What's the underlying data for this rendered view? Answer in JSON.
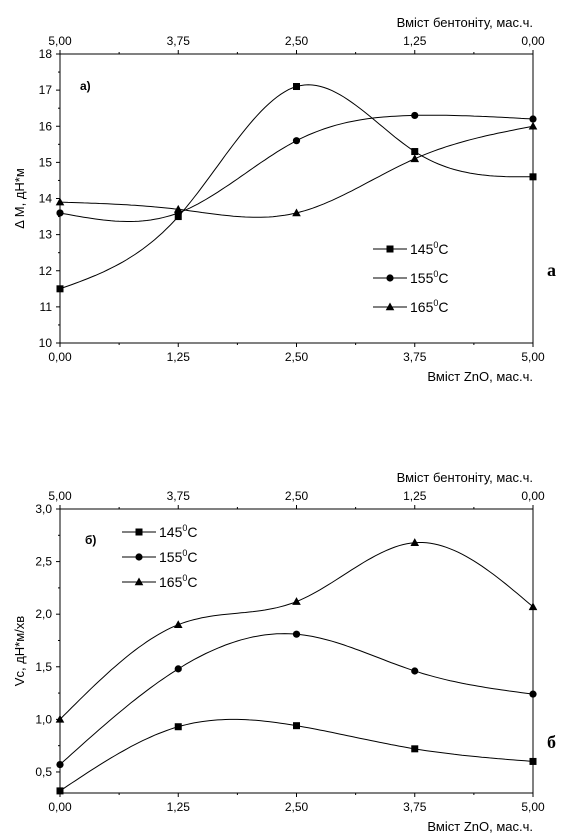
{
  "chart_data": [
    {
      "type": "scatter",
      "panel_label": "а)",
      "side_label": "а",
      "xlabel_bottom": "Вміст ZnO, мас.ч.",
      "xlabel_top": "Вміст бентоніту, мас.ч.",
      "ylabel": "Δ M, дН*м",
      "x_ticks": [
        "0,00",
        "1,25",
        "2,50",
        "3,75",
        "5,00"
      ],
      "x_top_ticks": [
        "5,00",
        "3,75",
        "2,50",
        "1,25",
        "0,00"
      ],
      "y_ticks": [
        "10",
        "11",
        "12",
        "13",
        "14",
        "15",
        "16",
        "17",
        "18"
      ],
      "xlim": [
        0,
        5
      ],
      "ylim": [
        10,
        18
      ],
      "legend_position": "bottom-right",
      "series": [
        {
          "name": "145⁰C",
          "marker": "square",
          "x": [
            0,
            1.25,
            2.5,
            3.75,
            5
          ],
          "values": [
            11.5,
            13.5,
            17.1,
            15.3,
            14.6
          ]
        },
        {
          "name": "155⁰C",
          "marker": "circle",
          "x": [
            0,
            1.25,
            2.5,
            3.75,
            5
          ],
          "values": [
            13.6,
            13.6,
            15.6,
            16.3,
            16.2
          ]
        },
        {
          "name": "165⁰C",
          "marker": "triangle",
          "x": [
            0,
            1.25,
            2.5,
            3.75,
            5
          ],
          "values": [
            13.9,
            13.7,
            13.6,
            15.1,
            16.0
          ]
        }
      ]
    },
    {
      "type": "scatter",
      "panel_label": "б)",
      "side_label": "б",
      "xlabel_bottom": "Вміст ZnO, мас.ч.",
      "xlabel_top": "Вміст бентоніту, мас.ч.",
      "ylabel": "Vc, дН*м/хв",
      "x_ticks": [
        "0,00",
        "1,25",
        "2,50",
        "3,75",
        "5,00"
      ],
      "x_top_ticks": [
        "5,00",
        "3,75",
        "2,50",
        "1,25",
        "0,00"
      ],
      "y_ticks": [
        "0,5",
        "1,0",
        "1,5",
        "2,0",
        "2,5",
        "3,0"
      ],
      "xlim": [
        0,
        5
      ],
      "ylim": [
        0.3,
        3.0
      ],
      "legend_position": "top-left",
      "series": [
        {
          "name": "145⁰C",
          "marker": "square",
          "x": [
            0,
            1.25,
            2.5,
            3.75,
            5
          ],
          "values": [
            0.32,
            0.93,
            0.94,
            0.72,
            0.6
          ]
        },
        {
          "name": "155⁰C",
          "marker": "circle",
          "x": [
            0,
            1.25,
            2.5,
            3.75,
            5
          ],
          "values": [
            0.57,
            1.48,
            1.81,
            1.46,
            1.24
          ]
        },
        {
          "name": "165⁰C",
          "marker": "triangle",
          "x": [
            0,
            1.25,
            2.5,
            3.75,
            5
          ],
          "values": [
            1.0,
            1.9,
            2.12,
            2.68,
            2.07
          ]
        }
      ]
    }
  ]
}
